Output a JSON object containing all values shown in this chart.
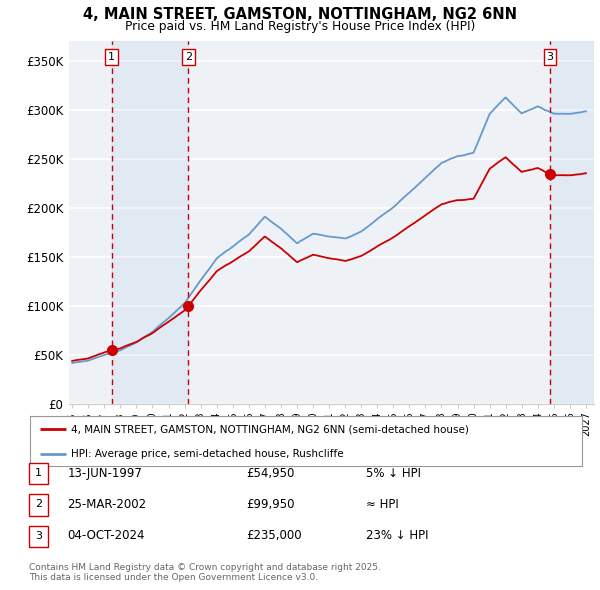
{
  "title_line1": "4, MAIN STREET, GAMSTON, NOTTINGHAM, NG2 6NN",
  "title_line2": "Price paid vs. HM Land Registry's House Price Index (HPI)",
  "ylim": [
    0,
    370000
  ],
  "yticks": [
    0,
    50000,
    100000,
    150000,
    200000,
    250000,
    300000,
    350000
  ],
  "ytick_labels": [
    "£0",
    "£50K",
    "£100K",
    "£150K",
    "£200K",
    "£250K",
    "£300K",
    "£350K"
  ],
  "xlim_start": 1994.8,
  "xlim_end": 2027.5,
  "background_color": "#ffffff",
  "plot_bg_color": "#eef2f7",
  "grid_color": "#ffffff",
  "hpi_color": "#6699cc",
  "price_color": "#cc0000",
  "sale1_date": 1997.45,
  "sale1_price": 54950,
  "sale1_label": "1",
  "sale2_date": 2002.23,
  "sale2_price": 99950,
  "sale2_label": "2",
  "sale3_date": 2024.76,
  "sale3_price": 235000,
  "sale3_label": "3",
  "legend_line1": "4, MAIN STREET, GAMSTON, NOTTINGHAM, NG2 6NN (semi-detached house)",
  "legend_line2": "HPI: Average price, semi-detached house, Rushcliffe",
  "table_rows": [
    {
      "num": "1",
      "date": "13-JUN-1997",
      "price": "£54,950",
      "rel": "5% ↓ HPI"
    },
    {
      "num": "2",
      "date": "25-MAR-2002",
      "price": "£99,950",
      "rel": "≈ HPI"
    },
    {
      "num": "3",
      "date": "04-OCT-2024",
      "price": "£235,000",
      "rel": "23% ↓ HPI"
    }
  ],
  "footnote": "Contains HM Land Registry data © Crown copyright and database right 2025.\nThis data is licensed under the Open Government Licence v3.0.",
  "hpi_key_years": [
    1995,
    1996,
    1997,
    1998,
    1999,
    2000,
    2001,
    2002,
    2003,
    2004,
    2005,
    2006,
    2007,
    2008,
    2009,
    2010,
    2011,
    2012,
    2013,
    2014,
    2015,
    2016,
    2017,
    2018,
    2019,
    2020,
    2021,
    2022,
    2023,
    2024,
    2025,
    2026,
    2027
  ],
  "hpi_key_vals": [
    42000,
    45000,
    50000,
    55000,
    63000,
    74000,
    88000,
    103000,
    126000,
    149000,
    161000,
    173000,
    191000,
    179000,
    164000,
    174000,
    171000,
    169000,
    176000,
    189000,
    201000,
    216000,
    231000,
    246000,
    253000,
    256000,
    296000,
    313000,
    296000,
    304000,
    296000,
    296000,
    299000
  ]
}
